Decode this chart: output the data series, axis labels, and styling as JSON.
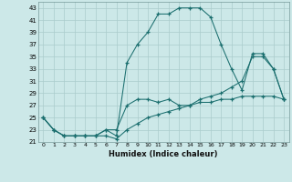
{
  "xlabel": "Humidex (Indice chaleur)",
  "background_color": "#cce8e8",
  "grid_color": "#aacccc",
  "line_color": "#1a6e6e",
  "xlim": [
    -0.5,
    23.5
  ],
  "ylim": [
    21,
    44
  ],
  "yticks": [
    21,
    23,
    25,
    27,
    29,
    31,
    33,
    35,
    37,
    39,
    41,
    43
  ],
  "xticks": [
    0,
    1,
    2,
    3,
    4,
    5,
    6,
    7,
    8,
    9,
    10,
    11,
    12,
    13,
    14,
    15,
    16,
    17,
    18,
    19,
    20,
    21,
    22,
    23
  ],
  "xtick_labels": [
    "0",
    "1",
    "2",
    "3",
    "4",
    "5",
    "6",
    "7",
    "8",
    "9",
    "10",
    "11",
    "12",
    "13",
    "14",
    "15",
    "16",
    "17",
    "18",
    "19",
    "20",
    "21",
    "22",
    "23"
  ],
  "line1_x": [
    0,
    1,
    2,
    3,
    4,
    5,
    6,
    7,
    8,
    9,
    10,
    11,
    12,
    13,
    14,
    15,
    16,
    17,
    18,
    19,
    20,
    21,
    22,
    23
  ],
  "line1_y": [
    25,
    23,
    22,
    22,
    22,
    22,
    22,
    21.5,
    23,
    24,
    25,
    25.5,
    26,
    26.5,
    27,
    27.5,
    27.5,
    28,
    28,
    28.5,
    28.5,
    28.5,
    28.5,
    28
  ],
  "line2_x": [
    0,
    1,
    2,
    3,
    4,
    5,
    6,
    7,
    8,
    9,
    10,
    11,
    12,
    13,
    14,
    15,
    16,
    17,
    18,
    19,
    20,
    21,
    22,
    23
  ],
  "line2_y": [
    25,
    23,
    22,
    22,
    22,
    22,
    23,
    23,
    27,
    28,
    28,
    27.5,
    28,
    27,
    27,
    28,
    28.5,
    29,
    30,
    31,
    35,
    35,
    33,
    28
  ],
  "line3_x": [
    0,
    1,
    2,
    3,
    4,
    5,
    6,
    7,
    8,
    9,
    10,
    11,
    12,
    13,
    14,
    15,
    16,
    17,
    18,
    19,
    20,
    21,
    22,
    23
  ],
  "line3_y": [
    25,
    23,
    22,
    22,
    22,
    22,
    23,
    22,
    34,
    37,
    39,
    42,
    42,
    43,
    43,
    43,
    41.5,
    37,
    33,
    29.5,
    35.5,
    35.5,
    33,
    28
  ]
}
